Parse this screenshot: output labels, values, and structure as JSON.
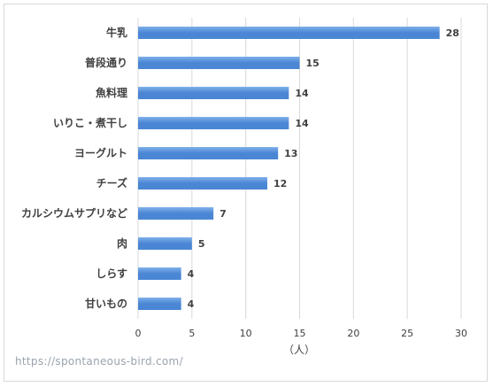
{
  "chart_data": {
    "type": "bar",
    "orientation": "horizontal",
    "categories": [
      "牛乳",
      "普段通り",
      "魚料理",
      "いりこ・煮干し",
      "ヨーグルト",
      "チーズ",
      "カルシウムサプリなど",
      "肉",
      "しらす",
      "甘いもの"
    ],
    "values": [
      28,
      15,
      14,
      14,
      13,
      12,
      7,
      5,
      4,
      4
    ],
    "xlabel": "（人）",
    "xlim": [
      0,
      30
    ],
    "xticks": [
      0,
      5,
      10,
      15,
      20,
      25,
      30
    ],
    "grid": "vertical",
    "legend": "none",
    "bar_color": "#4a86d4",
    "bar_color_light": "#7fb0ea",
    "gridline_color": "#d9d9d9"
  },
  "watermark": "https://spontaneous-bird.com/"
}
